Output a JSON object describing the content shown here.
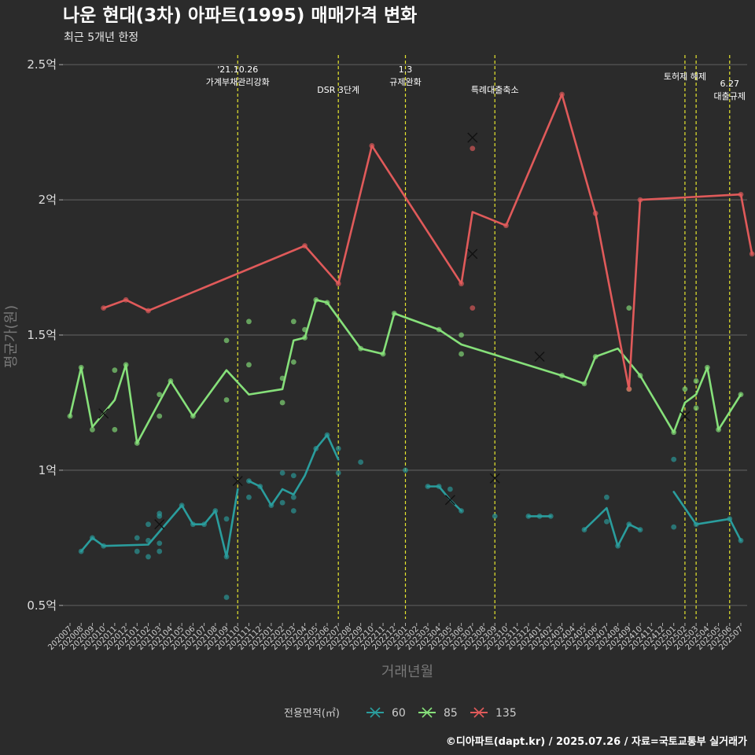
{
  "chart_data": {
    "type": "line",
    "title": "나운 현대(3차) 아파트(1995) 매매가격 변화",
    "subtitle": "최근 5개년 한정",
    "xlabel": "거래년월",
    "ylabel": "평균가(원)",
    "ylim": [
      0.45,
      2.55
    ],
    "y_ticks": [
      {
        "value": 0.5,
        "label": "0.5억"
      },
      {
        "value": 1.0,
        "label": "1억"
      },
      {
        "value": 1.5,
        "label": "1.5억"
      },
      {
        "value": 2.0,
        "label": "2억"
      },
      {
        "value": 2.5,
        "label": "2.5억"
      }
    ],
    "months": [
      "202007",
      "202008",
      "202009",
      "202010",
      "202011",
      "202012",
      "202101",
      "202102",
      "202103",
      "202104",
      "202105",
      "202106",
      "202107",
      "202108",
      "202109",
      "202110",
      "202111",
      "202112",
      "202201",
      "202202",
      "202203",
      "202204",
      "202205",
      "202206",
      "202207",
      "202208",
      "202209",
      "202210",
      "202211",
      "202212",
      "202301",
      "202302",
      "202303",
      "202304",
      "202305",
      "202306",
      "202307",
      "202308",
      "202309",
      "202310",
      "202311",
      "202312",
      "202401",
      "202402",
      "202403",
      "202404",
      "202405",
      "202406",
      "202407",
      "202408",
      "202409",
      "202410",
      "202411",
      "202412",
      "202501",
      "202502",
      "202503",
      "202504",
      "202505",
      "202506",
      "202507"
    ],
    "grid": true,
    "legend_position": "bottom",
    "legend_title": "전용면적(㎡)",
    "series": [
      {
        "name": "60",
        "color": "#2a9d9d",
        "line": [
          [
            "202008",
            0.7
          ],
          [
            "202009",
            0.75
          ],
          [
            "202010",
            0.72
          ],
          [
            "202102",
            0.725
          ],
          [
            "202105",
            0.87
          ],
          [
            "202106",
            0.8
          ],
          [
            "202107",
            0.8
          ],
          [
            "202108",
            0.85
          ],
          [
            "202109",
            0.68
          ],
          [
            "202110",
            0.93
          ],
          null,
          [
            "202111",
            0.96
          ],
          [
            "202112",
            0.94
          ],
          [
            "202201",
            0.87
          ],
          [
            "202202",
            0.93
          ],
          [
            "202203",
            0.91
          ],
          [
            "202204",
            0.98
          ],
          [
            "202205",
            1.08
          ],
          [
            "202206",
            1.13
          ],
          [
            "202207",
            1.04
          ],
          null,
          [
            "202303",
            0.94
          ],
          [
            "202304",
            0.94
          ],
          [
            "202305",
            0.89
          ],
          [
            "202306",
            0.85
          ],
          null,
          [
            "202312",
            0.83
          ],
          [
            "202401",
            0.83
          ],
          [
            "202402",
            0.83
          ],
          null,
          [
            "202405",
            0.78
          ],
          [
            "202407",
            0.86
          ],
          [
            "202408",
            0.72
          ],
          [
            "202409",
            0.8
          ],
          [
            "202410",
            0.78
          ],
          null,
          [
            "202501",
            0.92
          ],
          [
            "202503",
            0.8
          ],
          [
            "202506",
            0.82
          ],
          [
            "202507",
            0.74
          ]
        ],
        "points": [
          [
            "202008",
            0.7
          ],
          [
            "202009",
            0.75
          ],
          [
            "202010",
            0.72
          ],
          [
            "202101",
            0.75
          ],
          [
            "202101",
            0.7
          ],
          [
            "202102",
            0.8
          ],
          [
            "202102",
            0.74
          ],
          [
            "202102",
            0.68
          ],
          [
            "202103",
            0.84
          ],
          [
            "202103",
            0.83
          ],
          [
            "202103",
            0.73
          ],
          [
            "202103",
            0.7
          ],
          [
            "202105",
            0.87
          ],
          [
            "202106",
            0.8
          ],
          [
            "202107",
            0.8
          ],
          [
            "202108",
            0.85
          ],
          [
            "202109",
            0.82
          ],
          [
            "202109",
            0.53
          ],
          [
            "202109",
            0.68
          ],
          [
            "202111",
            0.96
          ],
          [
            "202111",
            0.9
          ],
          [
            "202112",
            0.94
          ],
          [
            "202201",
            0.87
          ],
          [
            "202202",
            0.99
          ],
          [
            "202202",
            0.88
          ],
          [
            "202203",
            0.98
          ],
          [
            "202203",
            0.9
          ],
          [
            "202203",
            0.85
          ],
          [
            "202205",
            1.08
          ],
          [
            "202206",
            1.13
          ],
          [
            "202207",
            1.08
          ],
          [
            "202207",
            0.99
          ],
          [
            "202209",
            1.03
          ],
          [
            "202301",
            1.0
          ],
          [
            "202303",
            0.94
          ],
          [
            "202304",
            0.94
          ],
          [
            "202305",
            0.93
          ],
          [
            "202306",
            0.85
          ],
          [
            "202309",
            0.83
          ],
          [
            "202312",
            0.83
          ],
          [
            "202401",
            0.83
          ],
          [
            "202402",
            0.83
          ],
          [
            "202405",
            0.78
          ],
          [
            "202407",
            0.9
          ],
          [
            "202407",
            0.81
          ],
          [
            "202408",
            0.72
          ],
          [
            "202409",
            0.8
          ],
          [
            "202410",
            0.78
          ],
          [
            "202501",
            1.04
          ],
          [
            "202501",
            0.79
          ],
          [
            "202503",
            0.8
          ],
          [
            "202506",
            0.82
          ],
          [
            "202507",
            0.74
          ]
        ],
        "crosses": [
          [
            "202103",
            0.8
          ],
          [
            "202110",
            0.96
          ],
          [
            "202305",
            0.89
          ],
          [
            "202309",
            0.97
          ]
        ]
      },
      {
        "name": "85",
        "color": "#86e07a",
        "line": [
          [
            "202007",
            1.2
          ],
          [
            "202008",
            1.38
          ],
          [
            "202009",
            1.16
          ],
          [
            "202011",
            1.26
          ],
          [
            "202012",
            1.39
          ],
          [
            "202101",
            1.1
          ],
          [
            "202104",
            1.33
          ],
          [
            "202106",
            1.2
          ],
          [
            "202109",
            1.37
          ],
          [
            "202111",
            1.28
          ],
          [
            "202202",
            1.3
          ],
          [
            "202203",
            1.48
          ],
          [
            "202204",
            1.49
          ],
          [
            "202205",
            1.63
          ],
          [
            "202206",
            1.62
          ],
          [
            "202209",
            1.45
          ],
          [
            "202211",
            1.43
          ],
          [
            "202212",
            1.58
          ],
          [
            "202304",
            1.52
          ],
          [
            "202306",
            1.465
          ],
          [
            "202403",
            1.35
          ],
          [
            "202405",
            1.32
          ],
          [
            "202406",
            1.42
          ],
          [
            "202408",
            1.45
          ],
          [
            "202410",
            1.35
          ],
          [
            "202501",
            1.14
          ],
          [
            "202502",
            1.25
          ],
          [
            "202503",
            1.28
          ],
          [
            "202504",
            1.38
          ],
          [
            "202505",
            1.15
          ],
          [
            "202507",
            1.28
          ]
        ],
        "points": [
          [
            "202007",
            1.2
          ],
          [
            "202008",
            1.38
          ],
          [
            "202009",
            1.15
          ],
          [
            "202011",
            1.37
          ],
          [
            "202011",
            1.15
          ],
          [
            "202012",
            1.39
          ],
          [
            "202101",
            1.1
          ],
          [
            "202103",
            1.28
          ],
          [
            "202103",
            1.2
          ],
          [
            "202104",
            1.33
          ],
          [
            "202106",
            1.2
          ],
          [
            "202109",
            1.48
          ],
          [
            "202109",
            1.26
          ],
          [
            "202111",
            1.55
          ],
          [
            "202111",
            1.39
          ],
          [
            "202203",
            1.55
          ],
          [
            "202203",
            1.4
          ],
          [
            "202202",
            1.34
          ],
          [
            "202202",
            1.25
          ],
          [
            "202204",
            1.52
          ],
          [
            "202204",
            1.49
          ],
          [
            "202205",
            1.63
          ],
          [
            "202206",
            1.62
          ],
          [
            "202209",
            1.45
          ],
          [
            "202211",
            1.43
          ],
          [
            "202212",
            1.58
          ],
          [
            "202304",
            1.52
          ],
          [
            "202306",
            1.5
          ],
          [
            "202306",
            1.43
          ],
          [
            "202403",
            1.35
          ],
          [
            "202405",
            1.32
          ],
          [
            "202406",
            1.42
          ],
          [
            "202409",
            1.6
          ],
          [
            "202409",
            1.3
          ],
          [
            "202410",
            1.35
          ],
          [
            "202501",
            1.14
          ],
          [
            "202502",
            1.3
          ],
          [
            "202503",
            1.33
          ],
          [
            "202503",
            1.23
          ],
          [
            "202504",
            1.38
          ],
          [
            "202505",
            1.15
          ],
          [
            "202507",
            1.28
          ]
        ],
        "crosses": [
          [
            "202010",
            1.21
          ],
          [
            "202401",
            1.42
          ],
          [
            "202502",
            1.2
          ]
        ]
      },
      {
        "name": "135",
        "color": "#e05a5a",
        "line": [
          [
            "202010",
            1.6
          ],
          [
            "202012",
            1.63
          ],
          [
            "202102",
            1.59
          ],
          [
            "202204",
            1.83
          ],
          [
            "202207",
            1.69
          ],
          [
            "202210",
            2.2
          ],
          [
            "202306",
            1.69
          ],
          [
            "202307",
            1.955
          ],
          [
            "202310",
            1.905
          ],
          [
            "202403",
            2.39
          ],
          [
            "202406",
            1.95
          ],
          [
            "202409",
            1.3
          ],
          [
            "202410",
            2.0
          ],
          [
            "202507",
            2.02
          ],
          [
            "202508",
            1.8
          ]
        ],
        "points": [
          [
            "202010",
            1.6
          ],
          [
            "202012",
            1.63
          ],
          [
            "202102",
            1.59
          ],
          [
            "202204",
            1.83
          ],
          [
            "202207",
            1.69
          ],
          [
            "202210",
            2.2
          ],
          [
            "202306",
            1.69
          ],
          [
            "202307",
            2.19
          ],
          [
            "202307",
            1.6
          ],
          [
            "202310",
            1.905
          ],
          [
            "202403",
            2.39
          ],
          [
            "202406",
            1.95
          ],
          [
            "202409",
            1.3
          ],
          [
            "202410",
            2.0
          ],
          [
            "202507",
            2.02
          ],
          [
            "202508",
            1.8
          ]
        ],
        "crosses": [
          [
            "202307",
            2.23
          ],
          [
            "202307",
            1.8
          ]
        ]
      }
    ],
    "events": [
      {
        "label_lines": [
          "'21.10.26",
          "가계부채관리강화"
        ],
        "month": "202110",
        "color": "#e6e62e"
      },
      {
        "label_lines": [
          "DSR 3단계"
        ],
        "month": "202207",
        "color": "#e6e62e"
      },
      {
        "label_lines": [
          "1.3",
          "규제완화"
        ],
        "month": "202301",
        "color": "#e6e62e"
      },
      {
        "label_lines": [
          "특례대출축소"
        ],
        "month": "202309",
        "color": "#e6e62e"
      },
      {
        "label_lines": [
          "토허제 해제"
        ],
        "month": "202502",
        "color": "#e6e62e"
      },
      {
        "label_lines": [],
        "month": "202503",
        "color": "#e6e62e"
      },
      {
        "label_lines": [
          "6.27",
          "대출규제"
        ],
        "month": "202506",
        "color": "#e6e62e"
      }
    ]
  },
  "caption": "©디아파트(dapt.kr) / 2025.07.26 / 자료=국토교통부 실거래가"
}
